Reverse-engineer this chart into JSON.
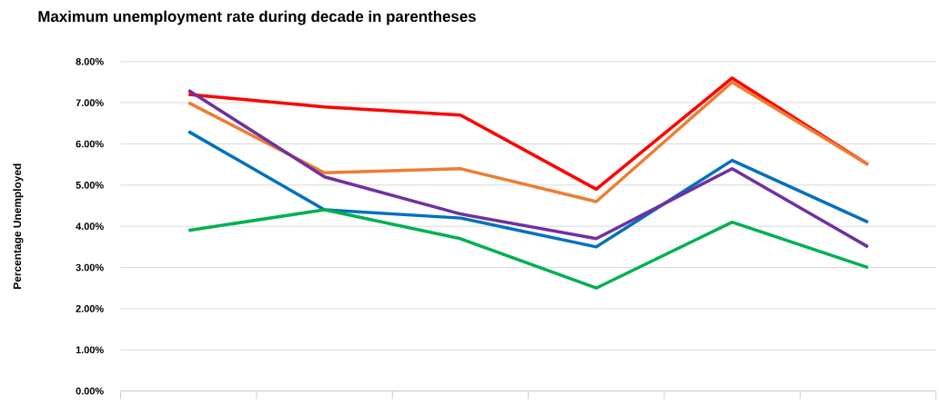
{
  "chart_data": {
    "type": "line",
    "title": "Maximum unemployment rate during decade in parentheses",
    "ylabel": "Percentage Unemployed",
    "categories": [
      null,
      null,
      null,
      null,
      null,
      null
    ],
    "series": [
      {
        "color": "#ff0000",
        "values": [
          7.2,
          6.9,
          6.7,
          4.9,
          7.6,
          5.5
        ]
      },
      {
        "color": "#ed7d31",
        "values": [
          7.0,
          5.3,
          5.4,
          4.6,
          7.5,
          5.5
        ]
      },
      {
        "color": "#0070c0",
        "values": [
          6.3,
          4.4,
          4.2,
          3.5,
          5.6,
          4.1
        ]
      },
      {
        "color": "#00b050",
        "values": [
          3.9,
          4.4,
          3.7,
          2.5,
          4.1,
          3.0
        ]
      },
      {
        "color": "#7030a0",
        "values": [
          7.3,
          5.2,
          4.3,
          3.7,
          5.4,
          3.5
        ]
      }
    ],
    "ylim": [
      0,
      8
    ],
    "yticks": [
      {
        "value": 0,
        "label": "0.00%"
      },
      {
        "value": 1,
        "label": "1.00%"
      },
      {
        "value": 2,
        "label": "2.00%"
      },
      {
        "value": 3,
        "label": "3.00%"
      },
      {
        "value": 4,
        "label": "4.00%"
      },
      {
        "value": 5,
        "label": "5.00%"
      },
      {
        "value": 6,
        "label": "6.00%"
      },
      {
        "value": 7,
        "label": "7.00%"
      },
      {
        "value": 8,
        "label": "8.00%"
      }
    ],
    "grid": "y"
  }
}
